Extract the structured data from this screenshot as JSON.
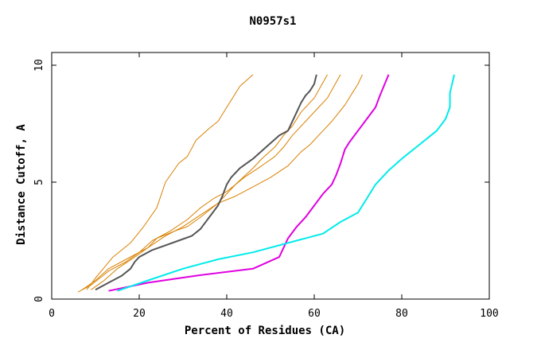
{
  "chart_data": {
    "type": "line",
    "title": "N0957s1",
    "xlabel": "Percent of Residues (CA)",
    "ylabel": "Distance Cutoff, A",
    "xlim": [
      0,
      100
    ],
    "ylim": [
      0,
      10
    ],
    "xticks": [
      "0",
      "20",
      "40",
      "60",
      "80",
      "100"
    ],
    "yticks": [
      "0",
      "5",
      "10"
    ],
    "grid": false,
    "legend": "none",
    "series": [
      {
        "color": "#d98000",
        "x": [
          8,
          10,
          14,
          18,
          21,
          24,
          26,
          29,
          31,
          33,
          36,
          38,
          40,
          43,
          46
        ],
        "y": [
          0.4,
          0.9,
          1.8,
          2.4,
          3.1,
          3.9,
          5.0,
          5.8,
          6.1,
          6.8,
          7.3,
          7.6,
          8.2,
          9.1,
          9.6
        ]
      },
      {
        "color": "#d98000",
        "x": [
          7,
          10,
          13,
          17,
          20,
          22,
          24,
          28,
          31,
          34,
          38,
          42,
          46,
          48,
          51,
          53,
          55,
          57,
          60,
          63
        ],
        "y": [
          0.4,
          0.8,
          1.3,
          1.7,
          2.0,
          2.2,
          2.6,
          2.9,
          3.1,
          3.5,
          4.1,
          4.9,
          5.6,
          6.0,
          6.5,
          7.0,
          7.4,
          8.0,
          8.6,
          9.6
        ]
      },
      {
        "color": "#d98000",
        "x": [
          6,
          9,
          13,
          17,
          20,
          23,
          27,
          31,
          34,
          37,
          40,
          44,
          48,
          51,
          53,
          55,
          58,
          61,
          63,
          66
        ],
        "y": [
          0.3,
          0.6,
          1.2,
          1.6,
          2.0,
          2.5,
          2.9,
          3.4,
          3.9,
          4.3,
          4.6,
          5.2,
          5.7,
          6.1,
          6.5,
          7.0,
          7.6,
          8.2,
          8.6,
          9.6
        ]
      },
      {
        "color": "#d98000",
        "x": [
          9,
          12,
          15,
          19,
          22,
          26,
          30,
          34,
          38,
          42,
          46,
          50,
          54,
          57,
          59,
          61,
          64,
          67,
          69,
          70,
          71
        ],
        "y": [
          0.4,
          0.8,
          1.3,
          1.8,
          2.2,
          2.7,
          3.1,
          3.6,
          4.1,
          4.4,
          4.8,
          5.2,
          5.7,
          6.3,
          6.6,
          7.0,
          7.6,
          8.3,
          8.9,
          9.2,
          9.6
        ]
      },
      {
        "color": "#555555",
        "x": [
          10,
          13,
          16,
          18,
          19,
          20,
          21,
          23,
          26,
          29,
          32,
          34,
          36,
          38,
          39,
          40,
          41,
          43,
          46,
          49,
          52,
          54,
          55,
          56,
          57,
          58,
          59,
          60,
          60.5
        ],
        "y": [
          0.4,
          0.7,
          1.0,
          1.3,
          1.6,
          1.8,
          1.9,
          2.1,
          2.3,
          2.5,
          2.7,
          3.0,
          3.5,
          4.0,
          4.4,
          4.9,
          5.2,
          5.6,
          6.0,
          6.5,
          7.0,
          7.2,
          7.6,
          8.0,
          8.4,
          8.7,
          8.9,
          9.2,
          9.6
        ]
      },
      {
        "color": "#e000e0",
        "x": [
          13,
          22,
          33,
          46,
          52,
          54,
          56,
          58,
          60,
          62,
          64,
          65,
          66,
          67,
          68,
          70,
          72,
          74,
          75,
          77
        ],
        "y": [
          0.35,
          0.7,
          1.0,
          1.3,
          1.8,
          2.6,
          3.1,
          3.5,
          4.0,
          4.5,
          4.9,
          5.3,
          5.8,
          6.4,
          6.7,
          7.2,
          7.7,
          8.2,
          8.7,
          9.6
        ]
      },
      {
        "color": "#00ebeb",
        "x": [
          15,
          22,
          30,
          38,
          46,
          54,
          62,
          66,
          70,
          72,
          74,
          77,
          80,
          84,
          88,
          90,
          91,
          91,
          92
        ],
        "y": [
          0.35,
          0.8,
          1.3,
          1.7,
          2.0,
          2.4,
          2.8,
          3.3,
          3.7,
          4.3,
          4.9,
          5.5,
          6.0,
          6.6,
          7.2,
          7.7,
          8.2,
          8.8,
          9.6
        ]
      }
    ]
  }
}
